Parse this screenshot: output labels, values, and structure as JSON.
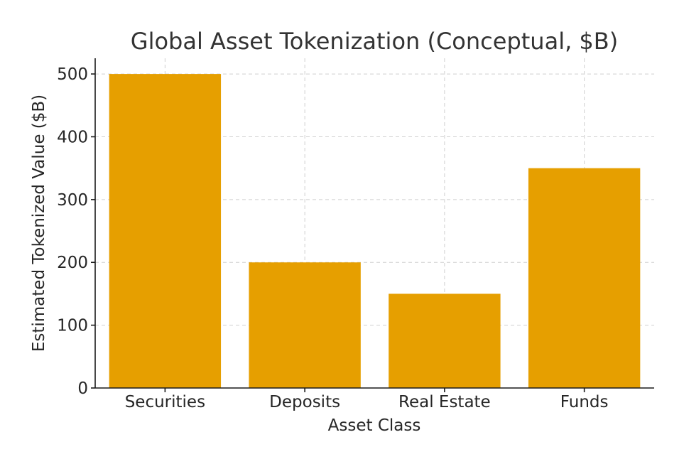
{
  "chart_data": {
    "type": "bar",
    "title": "Global Asset Tokenization (Conceptual, $B)",
    "xlabel": "Asset Class",
    "ylabel": "Estimated Tokenized Value ($B)",
    "categories": [
      "Securities",
      "Deposits",
      "Real Estate",
      "Funds"
    ],
    "values": [
      500,
      200,
      150,
      350
    ],
    "ylim": [
      0,
      525
    ],
    "yticks": [
      0,
      100,
      200,
      300,
      400,
      500
    ],
    "grid": true,
    "bar_color": "#E69F00"
  }
}
